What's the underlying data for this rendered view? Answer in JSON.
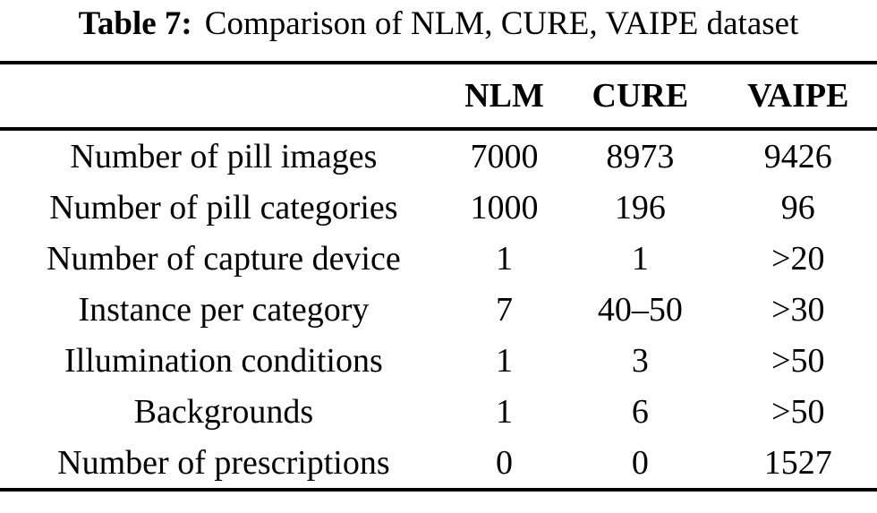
{
  "caption": {
    "label": "Table 7:",
    "text": "Comparison of NLM, CURE, VAIPE dataset"
  },
  "table": {
    "columns": [
      "",
      "NLM",
      "CURE",
      "VAIPE"
    ],
    "rows": [
      {
        "label": "Number of pill images",
        "values": [
          "7000",
          "8973",
          "9426"
        ]
      },
      {
        "label": "Number of pill categories",
        "values": [
          "1000",
          "196",
          "96"
        ]
      },
      {
        "label": "Number of capture device",
        "values": [
          "1",
          "1",
          ">20"
        ]
      },
      {
        "label": "Instance per category",
        "values": [
          "7",
          "40–50",
          ">30"
        ]
      },
      {
        "label": "Illumination conditions",
        "values": [
          "1",
          "3",
          ">50"
        ]
      },
      {
        "label": "Backgrounds",
        "values": [
          "1",
          "6",
          ">50"
        ]
      },
      {
        "label": "Number of prescriptions",
        "values": [
          "0",
          "0",
          "1527"
        ]
      }
    ]
  },
  "colors": {
    "text": "#000000",
    "background": "#ffffff",
    "rule": "#000000"
  },
  "chart_data": {
    "type": "table",
    "title": "Table 7: Comparison of NLM, CURE, VAIPE dataset",
    "columns": [
      "",
      "NLM",
      "CURE",
      "VAIPE"
    ],
    "rows": [
      [
        "Number of pill images",
        "7000",
        "8973",
        "9426"
      ],
      [
        "Number of pill categories",
        "1000",
        "196",
        "96"
      ],
      [
        "Number of capture device",
        "1",
        "1",
        ">20"
      ],
      [
        "Instance per category",
        "7",
        "40–50",
        ">30"
      ],
      [
        "Illumination conditions",
        "1",
        "3",
        ">50"
      ],
      [
        "Backgrounds",
        "1",
        "6",
        ">50"
      ],
      [
        "Number of prescriptions",
        "0",
        "0",
        "1527"
      ]
    ]
  }
}
